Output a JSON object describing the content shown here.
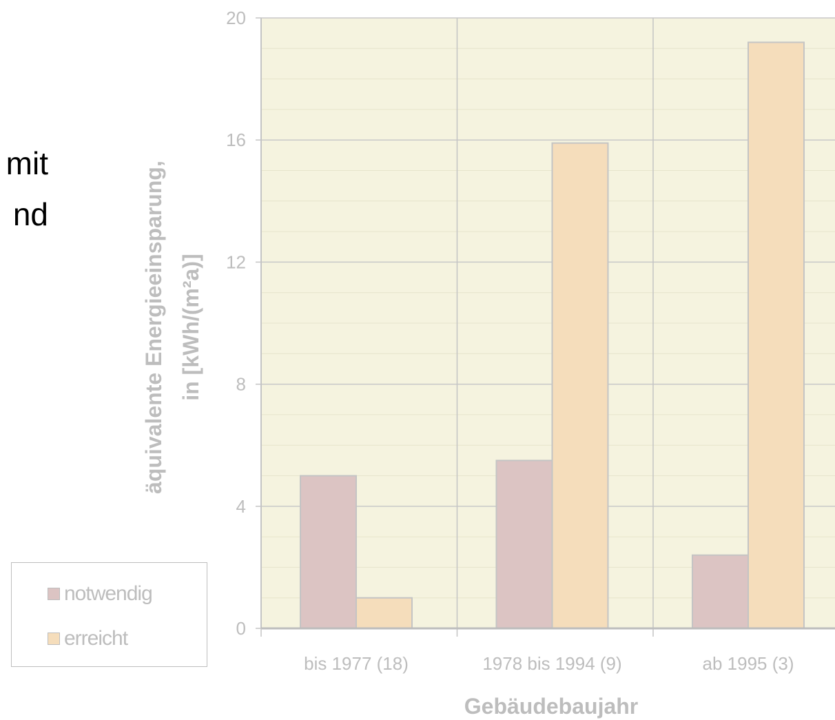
{
  "fragments": [
    "mit",
    "nd"
  ],
  "chart_data": {
    "type": "bar",
    "categories": [
      "bis 1977 (18)",
      "1978 bis 1994 (9)",
      "ab 1995 (3)"
    ],
    "series": [
      {
        "name": "notwendig",
        "values": [
          5.0,
          5.5,
          2.4
        ],
        "color": "#dcc4c3"
      },
      {
        "name": "erreicht",
        "values": [
          1.0,
          15.9,
          19.2
        ],
        "color": "#f5ddbb"
      }
    ],
    "xlabel": "Gebäudebaujahr",
    "ylabel": [
      "äquivalente Energieeinsparung,",
      "in [kWh/(m²a)]"
    ],
    "ylim": [
      0,
      20
    ],
    "yticks": [
      0,
      4,
      8,
      12,
      16,
      20
    ],
    "grid": true,
    "legend_position": "bottom-left",
    "plot_background": "#f5f3df",
    "bar_outline": "#c4c4c4",
    "text_color": "#bdbdbd"
  }
}
